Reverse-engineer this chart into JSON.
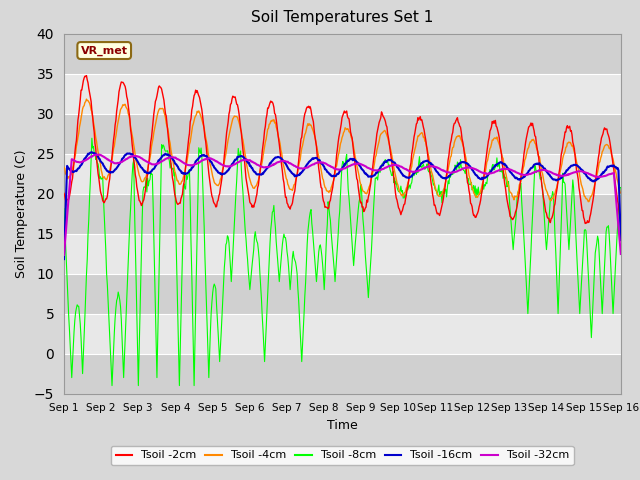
{
  "title": "Soil Temperatures Set 1",
  "xlabel": "Time",
  "ylabel": "Soil Temperature (C)",
  "xlim": [
    0,
    15
  ],
  "ylim": [
    -5,
    40
  ],
  "yticks": [
    -5,
    0,
    5,
    10,
    15,
    20,
    25,
    30,
    35,
    40
  ],
  "xtick_labels": [
    "Sep 1",
    "Sep 2",
    "Sep 3",
    "Sep 4",
    "Sep 5",
    "Sep 6",
    "Sep 7",
    "Sep 8",
    "Sep 9",
    "Sep 10",
    "Sep 11",
    "Sep 12",
    "Sep 13",
    "Sep 14",
    "Sep 15",
    "Sep 16"
  ],
  "annotation_text": "VR_met",
  "colors": {
    "Tsoil -2cm": "#ff0000",
    "Tsoil -4cm": "#ff8800",
    "Tsoil -8cm": "#00ff00",
    "Tsoil -16cm": "#0000cc",
    "Tsoil -32cm": "#cc00cc"
  },
  "bg_color": "#d8d8d8",
  "plot_bg_light": "#e8e8e8",
  "plot_bg_dark": "#d0d0d0",
  "legend_labels": [
    "Tsoil -2cm",
    "Tsoil -4cm",
    "Tsoil -8cm",
    "Tsoil -16cm",
    "Tsoil -32cm"
  ],
  "figsize": [
    6.4,
    4.8
  ],
  "dpi": 100
}
